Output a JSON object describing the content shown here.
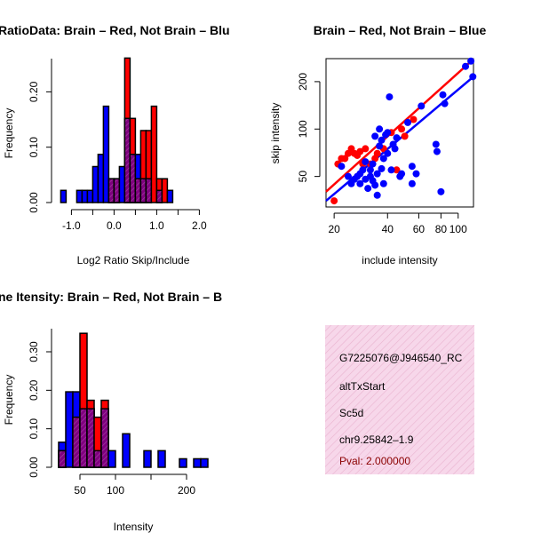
{
  "colors": {
    "brain": "#ff0000",
    "not_brain": "#0000ff",
    "overlap": "#800080",
    "axis": "#000000",
    "info_bg": "#f7d7ea",
    "info_hatch": "#e9b3cf",
    "pval": "#8b0000"
  },
  "chart_data": [
    {
      "type": "bar",
      "title": "RatioData: Brain – Red, Not Brain – Blu",
      "xlabel": "Log2 Ratio Skip/Include",
      "ylabel": "Frequency",
      "xlim": [
        -1.3,
        2.2
      ],
      "ylim": [
        0,
        0.26
      ],
      "x_ticks": [
        -1.0,
        -0.5,
        0.0,
        0.5,
        1.0,
        1.5,
        2.0
      ],
      "x_tick_labels": [
        "-1.0",
        "",
        "0.0",
        "",
        "1.0",
        "",
        "2.0"
      ],
      "y_ticks": [
        0.0,
        0.1,
        0.2
      ],
      "y_tick_labels": [
        "0.00",
        "0.10",
        "0.20"
      ],
      "bin_edges": [
        -1.25,
        -1.125,
        -1.0,
        -0.875,
        -0.75,
        -0.625,
        -0.5,
        -0.375,
        -0.25,
        -0.125,
        0.0,
        0.125,
        0.25,
        0.375,
        0.5,
        0.625,
        0.75,
        0.875,
        1.0,
        1.125,
        1.25,
        1.375,
        1.5,
        1.625,
        1.75,
        1.875,
        2.0,
        2.125
      ],
      "series": [
        {
          "name": "Not Brain",
          "color_key": "not_brain",
          "values": [
            0.022,
            0,
            0,
            0.022,
            0.022,
            0.022,
            0.065,
            0.087,
            0.174,
            0.043,
            0.043,
            0.065,
            0.152,
            0.087,
            0.087,
            0.043,
            0.043,
            0,
            0.022,
            0,
            0.022,
            0,
            0,
            0,
            0,
            0,
            0
          ]
        },
        {
          "name": "Brain",
          "color_key": "brain",
          "values": [
            0,
            0,
            0,
            0,
            0,
            0,
            0,
            0,
            0,
            0.043,
            0.043,
            0,
            0.261,
            0.152,
            0.043,
            0.13,
            0.13,
            0.174,
            0.043,
            0.043,
            0,
            0,
            0,
            0,
            0,
            0,
            0
          ]
        }
      ]
    },
    {
      "type": "scatter",
      "title": "Brain – Red, Not Brain – Blue",
      "xlabel": "include intensity",
      "ylabel": "skip intensity",
      "log_scale": true,
      "xlim": [
        18,
        122
      ],
      "ylim": [
        32,
        280
      ],
      "x_ticks": [
        20,
        40,
        60,
        80,
        100
      ],
      "x_tick_labels": [
        "20",
        "40",
        "60",
        "80",
        "100"
      ],
      "y_ticks": [
        50,
        100,
        200
      ],
      "y_tick_labels": [
        "50",
        "100",
        "200"
      ],
      "series": [
        {
          "name": "Brain",
          "color_key": "brain",
          "points": [
            [
              20,
              35
            ],
            [
              21,
              60
            ],
            [
              22,
              65
            ],
            [
              23,
              65
            ],
            [
              24,
              70
            ],
            [
              25,
              75
            ],
            [
              26,
              70
            ],
            [
              27,
              68
            ],
            [
              28,
              72
            ],
            [
              29,
              60
            ],
            [
              30,
              75
            ],
            [
              32,
              60
            ],
            [
              34,
              65
            ],
            [
              35,
              70
            ],
            [
              38,
              75
            ],
            [
              42,
              95
            ],
            [
              45,
              55
            ],
            [
              48,
              100
            ],
            [
              50,
              90
            ],
            [
              56,
              115
            ]
          ],
          "fit": [
            [
              18,
              40
            ],
            [
              122,
              278
            ]
          ]
        },
        {
          "name": "Not Brain",
          "color_key": "not_brain",
          "points": [
            [
              22,
              58
            ],
            [
              24,
              50
            ],
            [
              25,
              45
            ],
            [
              26,
              48
            ],
            [
              27,
              50
            ],
            [
              28,
              52
            ],
            [
              28,
              45
            ],
            [
              29,
              55
            ],
            [
              30,
              48
            ],
            [
              30,
              62
            ],
            [
              31,
              42
            ],
            [
              32,
              50
            ],
            [
              32,
              55
            ],
            [
              33,
              47
            ],
            [
              33,
              60
            ],
            [
              34,
              44
            ],
            [
              34,
              90
            ],
            [
              35,
              38
            ],
            [
              35,
              52
            ],
            [
              36,
              78
            ],
            [
              36,
              100
            ],
            [
              37,
              56
            ],
            [
              37,
              85
            ],
            [
              38,
              65
            ],
            [
              38,
              45
            ],
            [
              39,
              92
            ],
            [
              40,
              70
            ],
            [
              40,
              95
            ],
            [
              41,
              160
            ],
            [
              42,
              55
            ],
            [
              43,
              80
            ],
            [
              44,
              75
            ],
            [
              45,
              88
            ],
            [
              47,
              50
            ],
            [
              48,
              52
            ],
            [
              52,
              110
            ],
            [
              55,
              58
            ],
            [
              55,
              45
            ],
            [
              58,
              52
            ],
            [
              62,
              140
            ],
            [
              75,
              80
            ],
            [
              76,
              72
            ],
            [
              80,
              40
            ],
            [
              82,
              165
            ],
            [
              84,
              145
            ],
            [
              110,
              250
            ],
            [
              118,
              270
            ],
            [
              121,
              215
            ]
          ],
          "fit": [
            [
              18,
              35
            ],
            [
              122,
              215
            ]
          ]
        }
      ]
    },
    {
      "type": "bar",
      "title": "ne Itensity: Brain – Red, Not Brain – B",
      "xlabel": "Intensity",
      "ylabel": "Frequency",
      "xlim": [
        20,
        230
      ],
      "ylim": [
        0,
        0.36
      ],
      "x_ticks": [
        50,
        100,
        150,
        200
      ],
      "x_tick_labels": [
        "50",
        "100",
        "",
        "200"
      ],
      "y_ticks": [
        0.0,
        0.1,
        0.2,
        0.3
      ],
      "y_tick_labels": [
        "0.00",
        "0.10",
        "0.20",
        "0.30"
      ],
      "bin_edges": [
        20,
        30,
        40,
        50,
        60,
        70,
        80,
        90,
        100,
        110,
        120,
        130,
        140,
        150,
        160,
        170,
        180,
        190,
        200,
        210,
        220,
        230
      ],
      "series": [
        {
          "name": "Not Brain",
          "color_key": "not_brain",
          "values": [
            0.065,
            0.196,
            0.196,
            0.152,
            0.152,
            0.043,
            0.152,
            0.043,
            0,
            0.087,
            0,
            0,
            0.043,
            0,
            0.043,
            0,
            0,
            0.022,
            0,
            0.022,
            0.022
          ]
        },
        {
          "name": "Brain",
          "color_key": "brain",
          "values": [
            0.043,
            0,
            0.13,
            0.348,
            0.174,
            0.13,
            0.174,
            0,
            0,
            0,
            0,
            0,
            0,
            0,
            0,
            0,
            0,
            0,
            0,
            0,
            0
          ]
        }
      ]
    }
  ],
  "info_box": {
    "id": "G7225076@J946540_RC",
    "event": "altTxStart",
    "gene": "Sc5d",
    "location": "chr9.25842–1.9",
    "pval": "Pval: 2.000000"
  }
}
